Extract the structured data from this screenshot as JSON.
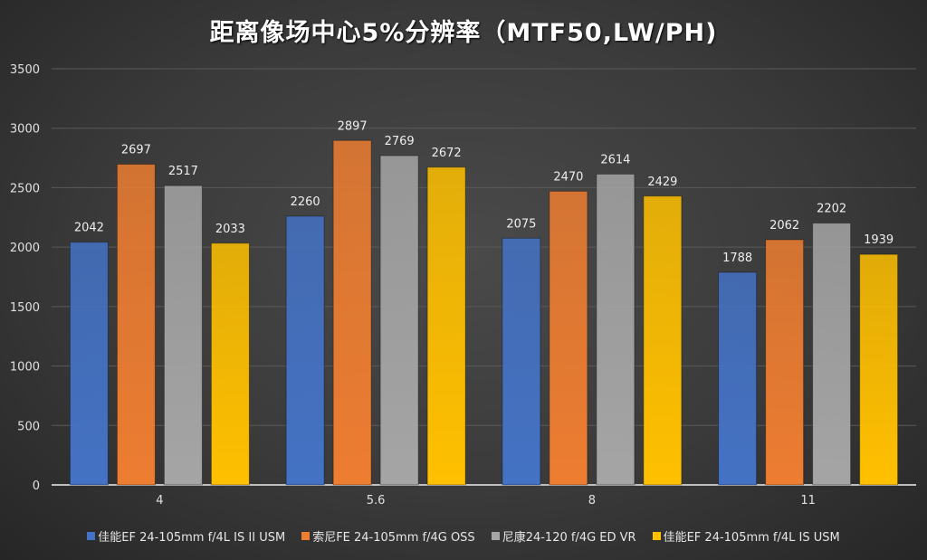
{
  "chart_data": {
    "type": "bar",
    "title": "距离像场中心5%分辨率（MTF50,LW/PH)",
    "xlabel": "",
    "ylabel": "",
    "ylim": [
      0,
      3500
    ],
    "yticks": [
      0,
      500,
      1000,
      1500,
      2000,
      2500,
      3000,
      3500
    ],
    "grid": true,
    "legend_position": "bottom",
    "categories": [
      "4",
      "5.6",
      "8",
      "11"
    ],
    "series": [
      {
        "name": "佳能EF 24-105mm f/4L IS II USM",
        "color": "#4472c4",
        "values": [
          2042,
          2260,
          2075,
          1788
        ]
      },
      {
        "name": "索尼FE 24-105mm f/4G OSS",
        "color": "#ed7d31",
        "values": [
          2697,
          2897,
          2470,
          2062
        ]
      },
      {
        "name": "尼康24-120 f/4G ED VR",
        "color": "#a5a5a5",
        "values": [
          2517,
          2769,
          2614,
          2202
        ]
      },
      {
        "name": "佳能EF 24-105mm f/4L IS  USM",
        "color": "#ffc000",
        "values": [
          2033,
          2672,
          2429,
          1939
        ]
      }
    ]
  }
}
